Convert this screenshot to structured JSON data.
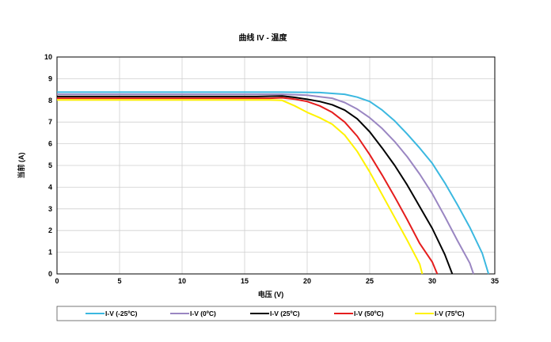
{
  "chart_data": {
    "type": "line",
    "title": "曲线 IV - 温度",
    "xlabel": "电压 (V)",
    "ylabel": "当前 (A)",
    "xlim": [
      0,
      35
    ],
    "ylim": [
      0,
      10
    ],
    "x_ticks": [
      "0",
      "5",
      "10",
      "15",
      "20",
      "25",
      "30",
      "35"
    ],
    "y_ticks": [
      "0",
      "1",
      "2",
      "3",
      "4",
      "5",
      "6",
      "7",
      "8",
      "9",
      "10"
    ],
    "grid": true,
    "legend_position": "bottom",
    "series": [
      {
        "name": "I-V (-25ºC)",
        "color": "#3bb8e0",
        "points": [
          [
            0,
            8.38
          ],
          [
            10,
            8.38
          ],
          [
            18,
            8.38
          ],
          [
            21,
            8.36
          ],
          [
            23,
            8.28
          ],
          [
            24,
            8.15
          ],
          [
            25,
            7.95
          ],
          [
            26,
            7.55
          ],
          [
            27,
            7.05
          ],
          [
            28,
            6.45
          ],
          [
            29,
            5.8
          ],
          [
            30,
            5.1
          ],
          [
            31,
            4.2
          ],
          [
            32,
            3.2
          ],
          [
            33,
            2.15
          ],
          [
            34,
            0.95
          ],
          [
            34.5,
            0
          ]
        ]
      },
      {
        "name": "I-V (0ºC)",
        "color": "#9a86c2",
        "points": [
          [
            0,
            8.28
          ],
          [
            10,
            8.28
          ],
          [
            18,
            8.28
          ],
          [
            20,
            8.24
          ],
          [
            22,
            8.1
          ],
          [
            23,
            7.9
          ],
          [
            24,
            7.6
          ],
          [
            25,
            7.2
          ],
          [
            26,
            6.7
          ],
          [
            27,
            6.1
          ],
          [
            28,
            5.4
          ],
          [
            29,
            4.6
          ],
          [
            30,
            3.7
          ],
          [
            31,
            2.65
          ],
          [
            32,
            1.55
          ],
          [
            33,
            0.5
          ],
          [
            33.3,
            0
          ]
        ]
      },
      {
        "name": "I-V (25ºC)",
        "color": "#000000",
        "points": [
          [
            0,
            8.18
          ],
          [
            10,
            8.18
          ],
          [
            16,
            8.18
          ],
          [
            18,
            8.2
          ],
          [
            19,
            8.14
          ],
          [
            20,
            8.05
          ],
          [
            21,
            7.95
          ],
          [
            22,
            7.8
          ],
          [
            23,
            7.55
          ],
          [
            24,
            7.15
          ],
          [
            25,
            6.55
          ],
          [
            26,
            5.8
          ],
          [
            27,
            5.0
          ],
          [
            28,
            4.1
          ],
          [
            29,
            3.1
          ],
          [
            30,
            2.1
          ],
          [
            31,
            0.9
          ],
          [
            31.6,
            0
          ]
        ]
      },
      {
        "name": "I-V (50ºC)",
        "color": "#e51d1d",
        "points": [
          [
            0,
            8.1
          ],
          [
            10,
            8.1
          ],
          [
            17,
            8.1
          ],
          [
            18,
            8.12
          ],
          [
            19,
            8.06
          ],
          [
            20,
            7.95
          ],
          [
            21,
            7.75
          ],
          [
            22,
            7.45
          ],
          [
            23,
            7.0
          ],
          [
            24,
            6.35
          ],
          [
            25,
            5.5
          ],
          [
            26,
            4.55
          ],
          [
            27,
            3.55
          ],
          [
            28,
            2.5
          ],
          [
            29,
            1.4
          ],
          [
            30,
            0.55
          ],
          [
            30.4,
            0
          ]
        ]
      },
      {
        "name": "I-V (75ºC)",
        "color": "#fff200",
        "points": [
          [
            0,
            8.02
          ],
          [
            10,
            8.02
          ],
          [
            17,
            8.02
          ],
          [
            18,
            8.0
          ],
          [
            19,
            7.75
          ],
          [
            20,
            7.45
          ],
          [
            21,
            7.2
          ],
          [
            22,
            6.9
          ],
          [
            23,
            6.4
          ],
          [
            24,
            5.65
          ],
          [
            25,
            4.7
          ],
          [
            26,
            3.65
          ],
          [
            27,
            2.6
          ],
          [
            28,
            1.55
          ],
          [
            29,
            0.45
          ],
          [
            29.2,
            0
          ]
        ]
      }
    ]
  }
}
